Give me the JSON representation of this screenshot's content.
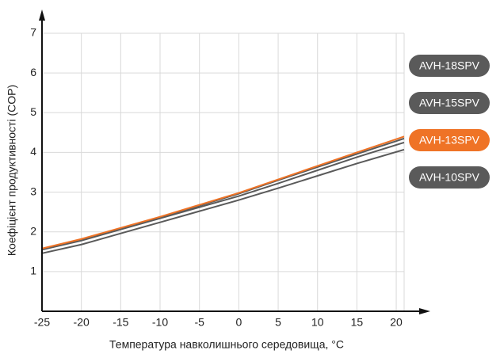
{
  "chart_data": {
    "type": "line",
    "x_label": "Температура навколишнього середовища, °C",
    "y_label": "Коефіцієнт продуктивності (COP)",
    "x": [
      -25,
      -20,
      -15,
      -10,
      -5,
      0,
      5,
      10,
      15,
      21
    ],
    "xlim": [
      -25,
      21
    ],
    "xticks": [
      -25,
      -20,
      -15,
      -10,
      -5,
      0,
      5,
      10,
      15,
      20
    ],
    "ylim": [
      0,
      7
    ],
    "yticks": [
      1,
      2,
      3,
      4,
      5,
      6,
      7
    ],
    "grid": true,
    "legend": "right",
    "series": [
      {
        "name": "AVH-18SPV",
        "color": "#5a5a5a",
        "values": [
          1.56,
          1.8,
          2.08,
          2.36,
          2.66,
          2.96,
          3.3,
          3.63,
          3.96,
          4.35
        ]
      },
      {
        "name": "AVH-15SPV",
        "color": "#5a5a5a",
        "values": [
          1.55,
          1.78,
          2.06,
          2.34,
          2.62,
          2.9,
          3.22,
          3.55,
          3.88,
          4.25
        ]
      },
      {
        "name": "AVH-13SPV",
        "color": "#ef7326",
        "values": [
          1.58,
          1.82,
          2.1,
          2.38,
          2.68,
          2.98,
          3.32,
          3.66,
          4.0,
          4.4
        ]
      },
      {
        "name": "AVH-10SPV",
        "color": "#5a5a5a",
        "values": [
          1.46,
          1.68,
          1.96,
          2.24,
          2.52,
          2.8,
          3.1,
          3.41,
          3.72,
          4.07
        ]
      }
    ]
  }
}
